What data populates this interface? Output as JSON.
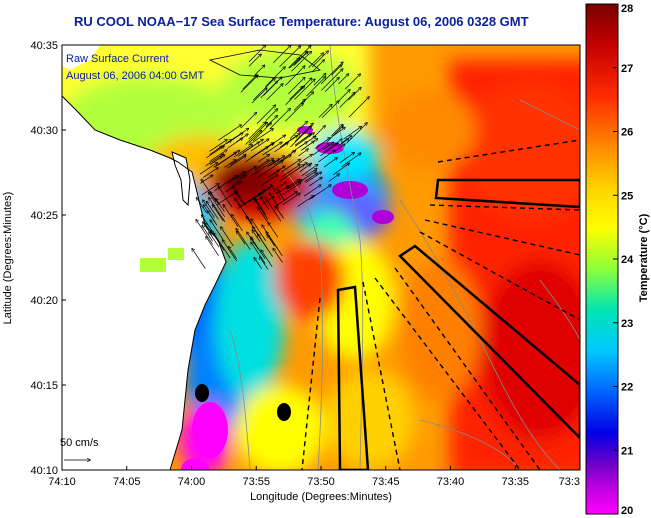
{
  "title": "RU COOL  NOAA−17  Sea Surface Temperature:  August 06, 2006 0328 GMT",
  "annotation": {
    "line1": "Raw Surface Current",
    "line2": "August 06, 2006 04:00 GMT"
  },
  "scale_arrow": {
    "label": "50 cm/s"
  },
  "axes": {
    "xlabel": "Longitude (Degrees:Minutes)",
    "ylabel": "Latitude (Degrees:Minutes)",
    "xticks": [
      "74:10",
      "74:05",
      "74:00",
      "73:55",
      "73:50",
      "73:45",
      "73:40",
      "73:35",
      "73:3"
    ],
    "yticks": [
      "40:35",
      "40:30",
      "40:25",
      "40:20",
      "40:15",
      "40:10"
    ]
  },
  "colorbar": {
    "label": "Temperature (°C)",
    "min": 20,
    "max": 28,
    "ticks": [
      "28",
      "27",
      "26",
      "25",
      "24",
      "23",
      "22",
      "21",
      "20"
    ]
  },
  "colors": {
    "land": "#ffffff",
    "coastline": "#000000",
    "bathymetry": "#8a8a8a",
    "title": "#0a1f9a"
  }
}
